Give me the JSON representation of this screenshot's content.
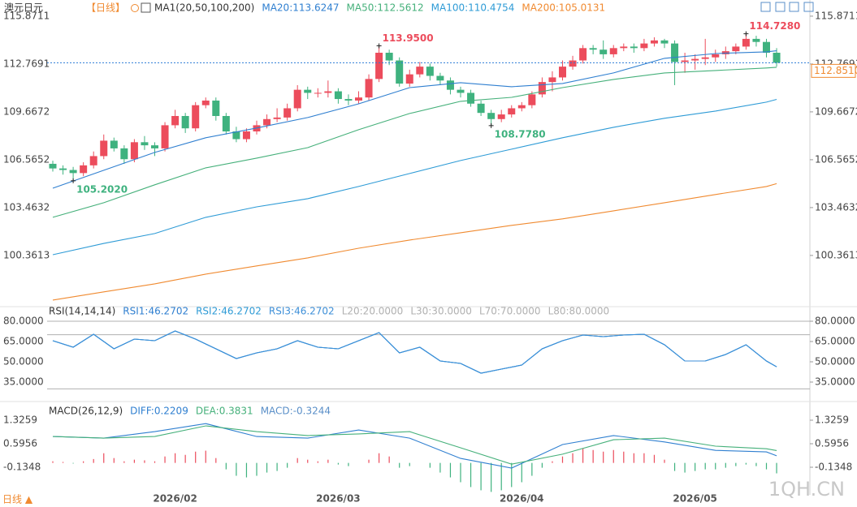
{
  "header": {
    "symbol": "澳元日元",
    "period": "【日线】",
    "indicator": "MA1(20,50,100,200)"
  },
  "footer": {
    "period_button": "日线 ▲",
    "watermark": "1QH.CN"
  },
  "chart_data": [
    {
      "type": "candlestick",
      "categories": [
        null,
        null,
        null,
        null,
        null,
        null,
        null,
        null,
        null,
        null,
        null,
        null,
        "2026/02",
        null,
        null,
        null,
        null,
        null,
        null,
        null,
        null,
        null,
        null,
        null,
        null,
        null,
        null,
        null,
        "2026/03",
        null,
        null,
        null,
        null,
        null,
        null,
        null,
        null,
        null,
        null,
        null,
        null,
        null,
        null,
        null,
        null,
        null,
        "2026/04",
        null,
        null,
        null,
        null,
        null,
        null,
        null,
        null,
        null,
        null,
        null,
        null,
        null,
        null,
        null,
        null,
        "2026/05",
        null,
        null,
        null,
        null,
        null,
        null,
        null,
        null
      ],
      "open": [
        106.3,
        106.0,
        105.9,
        105.7,
        106.2,
        106.8,
        107.8,
        107.3,
        106.6,
        107.7,
        107.5,
        107.3,
        108.8,
        109.4,
        108.6,
        110.1,
        110.4,
        109.4,
        108.4,
        107.9,
        108.4,
        108.8,
        109.2,
        109.3,
        109.9,
        111.1,
        110.9,
        110.9,
        111.0,
        110.5,
        110.4,
        110.6,
        111.8,
        113.5,
        113.0,
        111.5,
        112.1,
        112.6,
        112.0,
        111.7,
        111.1,
        110.9,
        110.2,
        109.6,
        109.2,
        109.5,
        109.9,
        110.1,
        110.8,
        111.6,
        111.9,
        112.6,
        113.0,
        113.8,
        113.7,
        113.4,
        113.8,
        113.9,
        113.8,
        114.1,
        114.3,
        114.1,
        112.9,
        113.0,
        113.1,
        113.2,
        113.4,
        113.6,
        113.9,
        114.4,
        114.2,
        113.5
      ],
      "high": [
        106.5,
        106.2,
        106.1,
        106.4,
        107.1,
        108.2,
        108.0,
        107.5,
        107.9,
        108.1,
        107.7,
        109.0,
        109.8,
        109.6,
        110.3,
        110.6,
        110.6,
        109.6,
        108.7,
        108.6,
        109.1,
        109.5,
        109.9,
        110.2,
        111.4,
        111.3,
        111.2,
        111.7,
        111.2,
        110.8,
        111.0,
        112.1,
        113.95,
        113.7,
        113.2,
        112.4,
        112.9,
        112.8,
        112.2,
        111.9,
        111.3,
        111.1,
        110.4,
        109.8,
        109.8,
        110.1,
        110.3,
        111.0,
        111.9,
        112.3,
        113.0,
        113.3,
        114.0,
        114.0,
        114.3,
        114.0,
        114.1,
        114.1,
        114.4,
        114.5,
        114.4,
        114.3,
        113.5,
        113.4,
        114.4,
        113.7,
        113.9,
        114.1,
        114.728,
        114.6,
        114.4,
        113.8
      ],
      "low": [
        105.8,
        105.6,
        105.202,
        105.5,
        106.0,
        106.6,
        107.1,
        106.3,
        106.4,
        107.2,
        106.8,
        107.1,
        108.6,
        108.3,
        108.4,
        109.9,
        109.1,
        108.2,
        107.7,
        107.7,
        108.2,
        108.6,
        109.0,
        109.1,
        109.7,
        110.5,
        110.6,
        110.6,
        110.2,
        110.1,
        110.2,
        110.4,
        111.6,
        112.7,
        111.3,
        111.3,
        111.9,
        111.7,
        111.4,
        110.8,
        110.6,
        110.0,
        109.4,
        108.778,
        109.0,
        109.3,
        109.7,
        109.9,
        110.6,
        111.0,
        111.7,
        112.4,
        112.8,
        113.4,
        113.1,
        113.2,
        113.6,
        113.5,
        113.6,
        113.9,
        113.8,
        111.4,
        112.2,
        112.4,
        112.7,
        112.9,
        113.1,
        113.4,
        113.7,
        113.9,
        113.2,
        112.6
      ],
      "close": [
        106.0,
        105.9,
        105.7,
        106.2,
        106.8,
        107.8,
        107.3,
        106.6,
        107.7,
        107.5,
        107.3,
        108.8,
        109.4,
        108.6,
        110.1,
        110.4,
        109.4,
        108.4,
        107.9,
        108.4,
        108.8,
        109.2,
        109.3,
        109.9,
        111.1,
        110.9,
        110.9,
        111.0,
        110.5,
        110.4,
        110.6,
        111.8,
        113.5,
        113.0,
        111.5,
        112.1,
        112.6,
        112.0,
        111.7,
        111.1,
        110.9,
        110.2,
        109.6,
        109.2,
        109.5,
        109.9,
        110.1,
        110.8,
        111.6,
        111.9,
        112.6,
        113.0,
        113.8,
        113.7,
        113.4,
        113.8,
        113.9,
        113.8,
        114.1,
        114.3,
        114.1,
        112.9,
        113.0,
        113.1,
        113.2,
        113.4,
        113.6,
        113.9,
        114.4,
        114.2,
        113.5,
        112.85
      ],
      "up_color": "#ec4c5c",
      "down_color": "#3fb27f",
      "ylim": [
        97.2,
        116.13
      ],
      "yticks": [
        115.8711,
        112.7691,
        109.6672,
        106.5652,
        103.4632,
        100.3613
      ],
      "last_price": {
        "value": 112.851,
        "label": "112.8510",
        "color": "#f08a30",
        "line_color": "#2a7bd6"
      },
      "annotations": [
        {
          "index": 2,
          "value": 105.202,
          "label": "105.2020"
        },
        {
          "index": 32,
          "value": 113.95,
          "label": "113.9500"
        },
        {
          "index": 43,
          "value": 108.778,
          "label": "108.7780"
        },
        {
          "index": 68,
          "value": 114.728,
          "label": "114.7280"
        }
      ],
      "series": [
        {
          "name": "MA20:113.6247",
          "color": "#2f7fd0",
          "x": [
            0,
            5,
            10,
            15,
            20,
            25,
            30,
            35,
            40,
            45,
            50,
            55,
            60,
            65,
            70,
            71
          ],
          "values": [
            104.72,
            105.88,
            107.04,
            107.99,
            108.62,
            109.3,
            110.19,
            111.24,
            111.56,
            111.3,
            111.51,
            112.19,
            113.14,
            113.45,
            113.56,
            113.6247
          ]
        },
        {
          "name": "MA50:112.5612",
          "color": "#45b07a",
          "x": [
            0,
            5,
            10,
            15,
            20,
            25,
            30,
            35,
            40,
            45,
            50,
            55,
            60,
            65,
            70,
            71
          ],
          "values": [
            102.83,
            103.78,
            104.94,
            106.04,
            106.67,
            107.35,
            108.51,
            109.56,
            110.35,
            110.61,
            111.24,
            111.77,
            112.19,
            112.35,
            112.51,
            112.5612
          ]
        },
        {
          "name": "MA100:110.4754",
          "color": "#2e9bd6",
          "x": [
            0,
            5,
            10,
            15,
            20,
            25,
            30,
            35,
            40,
            45,
            50,
            55,
            60,
            65,
            70,
            71
          ],
          "values": [
            100.41,
            101.14,
            101.78,
            102.83,
            103.51,
            104.04,
            104.83,
            105.67,
            106.51,
            107.25,
            107.99,
            108.67,
            109.25,
            109.72,
            110.3,
            110.4754
          ]
        },
        {
          "name": "MA200:105.0131",
          "color": "#f08a30",
          "x": [
            0,
            5,
            10,
            15,
            20,
            25,
            30,
            35,
            40,
            45,
            50,
            55,
            60,
            65,
            70,
            71
          ],
          "values": [
            97.47,
            98.0,
            98.52,
            99.15,
            99.68,
            100.2,
            100.83,
            101.36,
            101.83,
            102.31,
            102.73,
            103.25,
            103.78,
            104.31,
            104.83,
            105.0131
          ]
        }
      ]
    },
    {
      "type": "line",
      "title": "RSI(14,14,14)",
      "ylim": [
        23.6,
        86.6
      ],
      "yticks": [
        {
          "value": 80,
          "label": "80.0000"
        },
        {
          "value": 65,
          "label": "65.0000"
        },
        {
          "value": 50,
          "label": "50.0000"
        },
        {
          "value": 35,
          "label": "35.0000"
        }
      ],
      "levels": [
        {
          "name": "L20:20.0000",
          "value": 20
        },
        {
          "name": "L30:30.0000",
          "value": 30
        },
        {
          "name": "L70:70.0000",
          "value": 70
        },
        {
          "name": "L80:80.0000",
          "value": 80
        }
      ],
      "level_color": "#b0b0b0",
      "series": [
        {
          "name": "RSI1:46.2702",
          "color": "#2f7fd0",
          "x": [
            0,
            2,
            4,
            6,
            8,
            10,
            12,
            14,
            16,
            18,
            20,
            22,
            24,
            26,
            28,
            30,
            32,
            34,
            36,
            38,
            40,
            42,
            44,
            46,
            48,
            50,
            52,
            54,
            56,
            58,
            60,
            62,
            64,
            66,
            68,
            70,
            71
          ],
          "values": [
            65.6,
            60.8,
            70.4,
            59.6,
            66.8,
            65.6,
            72.8,
            66.8,
            59.6,
            52.4,
            56.6,
            59.6,
            65.6,
            60.8,
            59.6,
            65.6,
            71.6,
            56.6,
            60.8,
            50.6,
            48.8,
            41.6,
            44.6,
            47.6,
            59.6,
            65.6,
            69.8,
            68.6,
            69.8,
            70.4,
            62.6,
            50.6,
            50.6,
            55.4,
            62.6,
            50.6,
            46.2702
          ]
        },
        {
          "name": "RSI2:46.2702",
          "color": "#2e9bd6",
          "x": [
            0,
            2,
            4,
            6,
            8,
            10,
            12,
            14,
            16,
            18,
            20,
            22,
            24,
            26,
            28,
            30,
            32,
            34,
            36,
            38,
            40,
            42,
            44,
            46,
            48,
            50,
            52,
            54,
            56,
            58,
            60,
            62,
            64,
            66,
            68,
            70,
            71
          ],
          "values": [
            65.6,
            60.8,
            70.4,
            59.6,
            66.8,
            65.6,
            72.8,
            66.8,
            59.6,
            52.4,
            56.6,
            59.6,
            65.6,
            60.8,
            59.6,
            65.6,
            71.6,
            56.6,
            60.8,
            50.6,
            48.8,
            41.6,
            44.6,
            47.6,
            59.6,
            65.6,
            69.8,
            68.6,
            69.8,
            70.4,
            62.6,
            50.6,
            50.6,
            55.4,
            62.6,
            50.6,
            46.2702
          ]
        },
        {
          "name": "RSI3:46.2702",
          "color": "#3d8fd8",
          "x": [
            0,
            2,
            4,
            6,
            8,
            10,
            12,
            14,
            16,
            18,
            20,
            22,
            24,
            26,
            28,
            30,
            32,
            34,
            36,
            38,
            40,
            42,
            44,
            46,
            48,
            50,
            52,
            54,
            56,
            58,
            60,
            62,
            64,
            66,
            68,
            70,
            71
          ],
          "values": [
            65.6,
            60.8,
            70.4,
            59.6,
            66.8,
            65.6,
            72.8,
            66.8,
            59.6,
            52.4,
            56.6,
            59.6,
            65.6,
            60.8,
            59.6,
            65.6,
            71.6,
            56.6,
            60.8,
            50.6,
            48.8,
            41.6,
            44.6,
            47.6,
            59.6,
            65.6,
            69.8,
            68.6,
            69.8,
            70.4,
            62.6,
            50.6,
            50.6,
            55.4,
            62.6,
            50.6,
            46.2702
          ]
        }
      ]
    },
    {
      "type": "macd",
      "title": "MACD(26,12,9)",
      "ylim": [
        -0.991,
        1.779
      ],
      "yticks": [
        1.3259,
        0.5956,
        -0.1348
      ],
      "up_color": "#ec4c5c",
      "down_color": "#3fb27f",
      "series": [
        {
          "name": "DIFF:0.2209",
          "color": "#2f7fd0",
          "x": [
            0,
            5,
            10,
            15,
            20,
            25,
            30,
            35,
            40,
            45,
            50,
            55,
            60,
            65,
            70,
            71
          ],
          "values": [
            0.82,
            0.77,
            0.97,
            1.22,
            0.82,
            0.77,
            1.02,
            0.77,
            0.14,
            -0.16,
            0.57,
            0.85,
            0.65,
            0.39,
            0.34,
            0.2209
          ]
        },
        {
          "name": "DEA:0.3831",
          "color": "#45b07a",
          "x": [
            0,
            5,
            10,
            15,
            20,
            25,
            30,
            35,
            40,
            45,
            50,
            55,
            60,
            65,
            70,
            71
          ],
          "values": [
            0.82,
            0.77,
            0.82,
            1.15,
            0.97,
            0.85,
            0.9,
            0.97,
            0.47,
            -0.04,
            0.27,
            0.72,
            0.77,
            0.52,
            0.44,
            0.3831
          ]
        }
      ],
      "histogram": {
        "name": "MACD:-0.3244",
        "color": "#5a8fc8",
        "values": [
          0.05,
          0.03,
          -0.02,
          0.05,
          0.12,
          0.3,
          0.15,
          0.05,
          0.1,
          0.08,
          0.05,
          0.2,
          0.3,
          0.25,
          0.35,
          0.38,
          0.15,
          -0.2,
          -0.4,
          -0.45,
          -0.4,
          -0.3,
          -0.25,
          -0.15,
          0.15,
          0.1,
          0.05,
          0.1,
          -0.05,
          -0.1,
          0.0,
          0.1,
          0.3,
          0.2,
          -0.15,
          -0.1,
          0.0,
          -0.15,
          -0.3,
          -0.45,
          -0.6,
          -0.75,
          -0.85,
          -0.9,
          -0.85,
          -0.75,
          -0.6,
          -0.4,
          -0.15,
          0.05,
          0.2,
          0.3,
          0.45,
          0.4,
          0.35,
          0.4,
          0.35,
          0.3,
          0.3,
          0.25,
          0.1,
          -0.25,
          -0.3,
          -0.25,
          -0.2,
          -0.2,
          -0.15,
          -0.1,
          -0.05,
          -0.1,
          -0.2,
          -0.3244
        ]
      }
    }
  ]
}
